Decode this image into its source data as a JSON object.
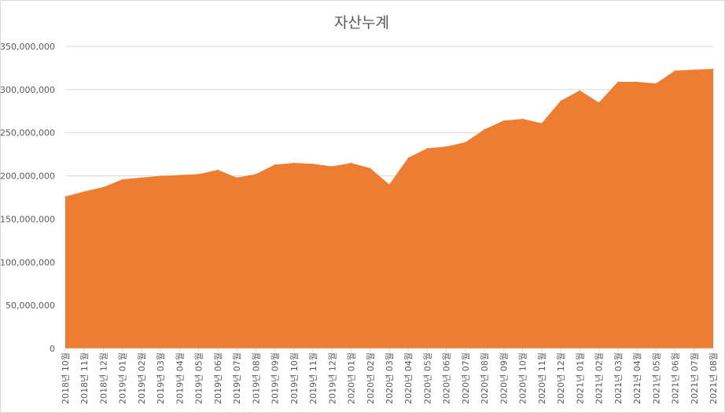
{
  "chart_data": {
    "type": "area",
    "title": "자산누계",
    "categories": [
      "2018년 10월",
      "2018년 11월",
      "2018년 12월",
      "2019년 01월",
      "2019년 02월",
      "2019년 03월",
      "2019년 04월",
      "2019년 05월",
      "2019년 06월",
      "2019년 07월",
      "2019년 08월",
      "2019년 09월",
      "2019년 10월",
      "2019년 11월",
      "2019년 12월",
      "2020년 01월",
      "2020년 02월",
      "2020년 03월",
      "2020년 04월",
      "2020년 05월",
      "2020년 06월",
      "2020년 07월",
      "2020년 08월",
      "2020년 09월",
      "2020년 10월",
      "2020년 11월",
      "2020년 12월",
      "2021년 01월",
      "2021년 02월",
      "2021년 03월",
      "2021년 04월",
      "2021년 05월",
      "2021년 06월",
      "2021년 07월",
      "2021년 08월"
    ],
    "values": [
      176000000,
      182000000,
      187000000,
      196000000,
      198000000,
      200000000,
      201000000,
      202000000,
      207000000,
      198000000,
      202000000,
      213000000,
      215000000,
      214000000,
      211000000,
      215000000,
      209000000,
      190000000,
      221000000,
      232000000,
      234000000,
      239000000,
      254000000,
      264000000,
      266000000,
      261000000,
      287000000,
      299000000,
      285000000,
      309000000,
      309000000,
      307000000,
      322000000,
      323000000,
      324000000
    ],
    "ylim": [
      0,
      350000000
    ],
    "yticks": [
      "0",
      "50,000,000",
      "100,000,000",
      "150,000,000",
      "200,000,000",
      "250,000,000",
      "300,000,000",
      "350,000,000"
    ],
    "color": "#ed7d31",
    "gridlines": true,
    "legend": "none"
  }
}
